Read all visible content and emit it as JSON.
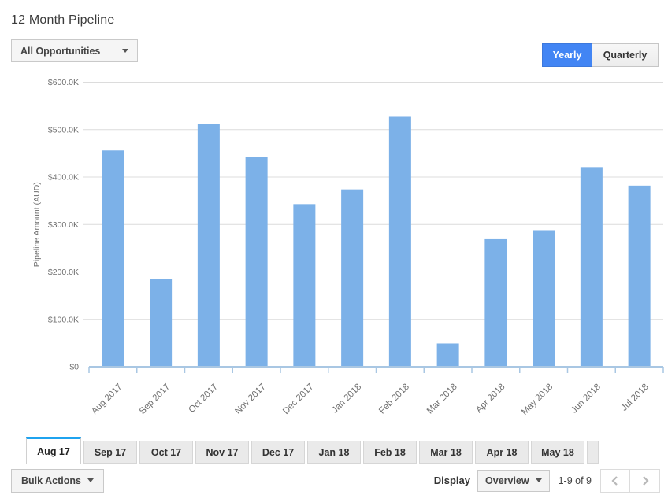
{
  "header": {
    "title": "12 Month Pipeline",
    "filter": {
      "label": "All Opportunities"
    },
    "view_toggle": {
      "options": [
        "Yearly",
        "Quarterly"
      ],
      "active": "Yearly",
      "yearly_label": "Yearly",
      "quarterly_label": "Quarterly"
    }
  },
  "chart_data": {
    "type": "bar",
    "title": "",
    "xlabel": "",
    "ylabel": "Pipeline Amount (AUD)",
    "categories": [
      "Aug 2017",
      "Sep 2017",
      "Oct 2017",
      "Nov 2017",
      "Dec 2017",
      "Jan 2018",
      "Feb 2018",
      "Mar 2018",
      "Apr 2018",
      "May 2018",
      "Jun 2018",
      "Jul 2018"
    ],
    "values": [
      456000,
      185000,
      512000,
      443000,
      343000,
      374000,
      527000,
      49000,
      269000,
      288000,
      421000,
      382000
    ],
    "ylim": [
      0,
      600000
    ],
    "ytick_step": 100000,
    "ytick_labels": [
      "$0",
      "$100.0K",
      "$200.0K",
      "$300.0K",
      "$400.0K",
      "$500.0K",
      "$600.0K"
    ],
    "grid": true,
    "legend": "none"
  },
  "month_tabs": {
    "items": [
      "Aug 17",
      "Sep 17",
      "Oct 17",
      "Nov 17",
      "Dec 17",
      "Jan 18",
      "Feb 18",
      "Mar 18",
      "Apr 18",
      "May 18"
    ],
    "active": "Aug 17"
  },
  "footer": {
    "bulk_actions_label": "Bulk Actions",
    "display_label": "Display",
    "display_value": "Overview",
    "range_text": "1-9 of 9"
  },
  "colors": {
    "bar": "#7cb1e8",
    "axis": "#a9c7e3",
    "grid": "#dcdcdc",
    "tick_text": "#6e6e6e",
    "accent_blue": "#4285f4",
    "tab_active_top": "#1fa3ef",
    "chevron": "#b8b8b8"
  }
}
